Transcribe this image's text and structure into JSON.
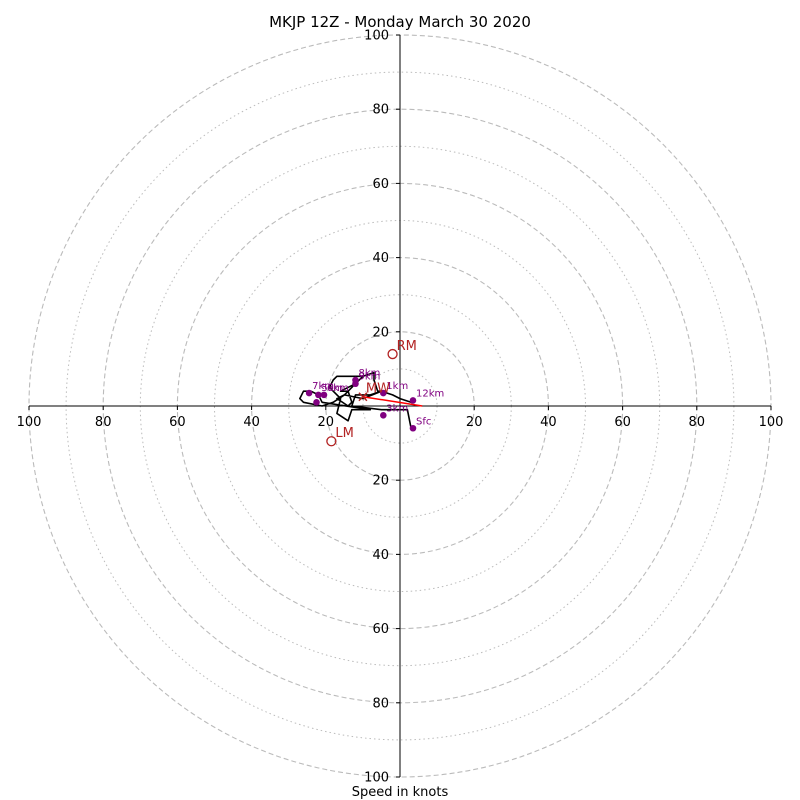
{
  "chart_data": {
    "type": "hodograph",
    "title": "MKJP 12Z - Monday March 30 2020",
    "xlabel": "Speed in knots",
    "range": [
      -100,
      100
    ],
    "major_rings": [
      20,
      40,
      60,
      80,
      100
    ],
    "minor_rings": [
      10,
      30,
      50,
      70,
      90
    ],
    "tick_labels": [
      "100",
      "80",
      "60",
      "40",
      "20",
      "20",
      "40",
      "60",
      "80",
      "100"
    ],
    "y_tick_labels": [
      "100",
      "80",
      "60",
      "40",
      "20",
      "20",
      "40",
      "60",
      "80",
      "100"
    ],
    "grid": true,
    "colors": {
      "ring": "#bbbbbb",
      "trace": "#000000",
      "height_marker": "#800080",
      "storm_motion": "#b22222",
      "mean_wind": "#ff0000"
    },
    "trace": [
      [
        3,
        -6
      ],
      [
        2,
        -1
      ],
      [
        -5,
        -1
      ],
      [
        -13,
        0
      ],
      [
        -12,
        3
      ],
      [
        -8,
        3
      ],
      [
        -5,
        4
      ],
      [
        -10,
        2
      ],
      [
        -15,
        3
      ],
      [
        -17,
        2
      ],
      [
        -14,
        0
      ],
      [
        -13,
        1
      ],
      [
        -14,
        4
      ],
      [
        -16,
        4
      ],
      [
        -12,
        6
      ],
      [
        -10,
        8
      ],
      [
        -17,
        8
      ],
      [
        -18,
        7
      ],
      [
        -19,
        5
      ],
      [
        -16,
        2
      ],
      [
        -17,
        -2
      ],
      [
        -14,
        -4
      ],
      [
        -13,
        -1
      ],
      [
        -10,
        -1
      ],
      [
        -8,
        -1
      ],
      [
        -21,
        1
      ],
      [
        -22,
        3
      ],
      [
        -24,
        4
      ],
      [
        -26,
        4
      ],
      [
        -27,
        2
      ],
      [
        -26,
        1
      ],
      [
        -21,
        0
      ],
      [
        -18,
        1
      ],
      [
        -15,
        3
      ],
      [
        -12,
        6
      ],
      [
        -10,
        8
      ],
      [
        -7,
        9
      ],
      [
        -7,
        7
      ],
      [
        -6,
        4
      ],
      [
        -5,
        4
      ],
      [
        -2,
        3
      ],
      [
        0,
        2
      ],
      [
        3,
        1
      ],
      [
        4,
        1
      ]
    ],
    "height_markers": [
      {
        "label": "Sfc",
        "u": 3.5,
        "v": -6
      },
      {
        "label": "3km",
        "u": -4.5,
        "v": -2.5
      },
      {
        "label": "1km",
        "u": -4.5,
        "v": 3.5
      },
      {
        "label": "12km",
        "u": 3.5,
        "v": 1.5
      },
      {
        "label": "7km",
        "u": -24.5,
        "v": 3.5
      },
      {
        "label": "5km",
        "u": -22,
        "v": 3
      },
      {
        "label": "6km",
        "u": -20.5,
        "v": 3
      },
      {
        "label": "8km",
        "u": -12,
        "v": 7
      },
      {
        "label": "9km",
        "u": -12,
        "v": 6
      },
      {
        "label": "",
        "u": -22.5,
        "v": 1
      }
    ],
    "storm_motion": [
      {
        "label": "RM",
        "u": -2,
        "v": 14
      },
      {
        "label": "LM",
        "u": -18.5,
        "v": -9.5
      }
    ],
    "mean_wind": {
      "label": "MW",
      "u": -10,
      "v": 2.5
    }
  }
}
